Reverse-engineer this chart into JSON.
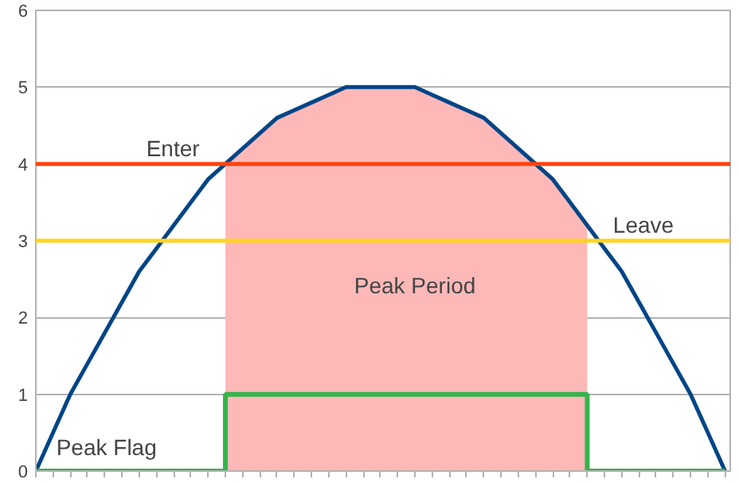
{
  "chart_data": {
    "type": "line",
    "categories": [
      null,
      null,
      null,
      null,
      null,
      null,
      null,
      null,
      null,
      null,
      null,
      null,
      null,
      null,
      null,
      null,
      null,
      null,
      null,
      null,
      null,
      null,
      null,
      null,
      null,
      null,
      null,
      null,
      null,
      null,
      null,
      null,
      null,
      null,
      null,
      null,
      null,
      null,
      null,
      null,
      null
    ],
    "series": [
      {
        "type": "area",
        "name": "Peak Period",
        "color": "#ffb8b8",
        "values": [
          null,
          null,
          null,
          null,
          null,
          null,
          null,
          null,
          null,
          null,
          null,
          4,
          4.2,
          4.4,
          4.6,
          4.7,
          4.8,
          4.9,
          5,
          5,
          5,
          5,
          5,
          4.9,
          4.8,
          4.7,
          4.6,
          4.4,
          4.2,
          4,
          3.8,
          3.5,
          3.2,
          null,
          null,
          null,
          null,
          null,
          null,
          null,
          null
        ]
      },
      {
        "color": "#004586",
        "values": [
          0,
          0.5,
          1,
          1.4,
          1.8,
          2.2,
          2.6,
          2.9,
          3.2,
          3.5,
          3.8,
          4,
          4.2,
          4.4,
          4.6,
          4.7,
          4.8,
          4.9,
          5,
          5,
          5,
          5,
          5,
          4.9,
          4.8,
          4.7,
          4.6,
          4.4,
          4.2,
          4,
          3.8,
          3.5,
          3.2,
          2.9,
          2.6,
          2.2,
          1.8,
          1.4,
          1,
          0.5,
          0
        ]
      },
      {
        "type": "step",
        "name": "Peak Flag",
        "color": "#33b54a",
        "values": [
          0,
          0,
          0,
          0,
          0,
          0,
          0,
          0,
          0,
          0,
          0,
          1,
          1,
          1,
          1,
          1,
          1,
          1,
          1,
          1,
          1,
          1,
          1,
          1,
          1,
          1,
          1,
          1,
          1,
          1,
          1,
          1,
          0,
          0,
          0,
          0,
          0,
          0,
          0,
          0,
          0
        ]
      }
    ],
    "ylim": [
      0,
      6
    ],
    "yticks": [
      0,
      1,
      2,
      3,
      4,
      5,
      6
    ],
    "grid": "y",
    "tick_labels": "y",
    "ref_lines": [
      {
        "axis": "y",
        "value": 4,
        "label": "Enter",
        "color": "#ff420e"
      },
      {
        "axis": "y",
        "value": 3,
        "label": "Leave",
        "color": "#ffd320"
      }
    ]
  }
}
